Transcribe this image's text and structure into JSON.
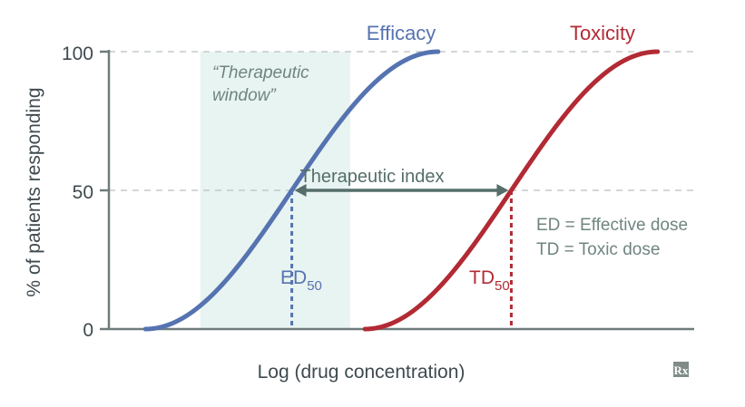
{
  "chart_data": {
    "type": "line",
    "xlabel": "Log (drug concentration)",
    "ylabel": "% of patients responding",
    "ylim": [
      0,
      100
    ],
    "yticks": [
      "0",
      "50",
      "100"
    ],
    "grid": "dashed horizontal at 50 and 100",
    "series": [
      {
        "name": "Efficacy",
        "color": "#5673b1",
        "shape": "sigmoid",
        "x_start": 0.5,
        "x_end": 4.5,
        "x50": 2.5,
        "y_range": [
          0,
          100
        ]
      },
      {
        "name": "Toxicity",
        "color": "#b22a34",
        "shape": "sigmoid",
        "x_start": 3.5,
        "x_end": 7.5,
        "x50": 5.5,
        "y_range": [
          0,
          100
        ]
      }
    ],
    "annotations": {
      "therapeutic_window": {
        "line1": "“Therapeutic",
        "line2": "window”",
        "x_from": 1.25,
        "x_to": 3.3,
        "fill": "#e8f4f1"
      },
      "therapeutic_index": {
        "label": "Therapeutic index",
        "x_from": 2.5,
        "x_to": 5.5,
        "y": 50,
        "color": "#556e6a"
      },
      "ed50": {
        "main": "ED",
        "sub": "50",
        "x": 2.5,
        "color": "#5673b1"
      },
      "td50": {
        "main": "TD",
        "sub": "50",
        "x": 5.5,
        "color": "#b22a34"
      },
      "legend_text": [
        "ED = Effective dose",
        "TD = Toxic dose"
      ]
    },
    "logo": "Rx"
  }
}
